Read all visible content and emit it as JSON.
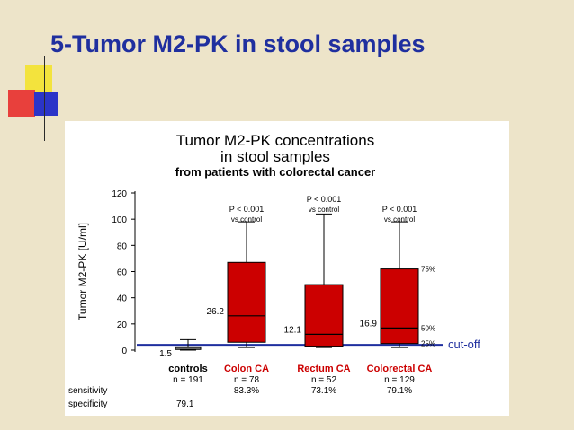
{
  "slide": {
    "title": "5-Tumor M2-PK in stool samples"
  },
  "colors": {
    "title": "#1f2f9f",
    "box": "#cc0000",
    "cutoff": "#1f2f9f",
    "background": "#ede4c9"
  },
  "chart_data": {
    "type": "boxplot",
    "title": [
      "Tumor M2-PK concentrations",
      "in stool samples"
    ],
    "subtitle": "from patients with colorectal cancer",
    "ylabel": "Tumor M2-PK   [U/ml]",
    "ylim": [
      0,
      120
    ],
    "yticks": [
      0,
      20,
      40,
      60,
      80,
      100,
      120
    ],
    "cutoff": {
      "value": 4,
      "label": "cut-off"
    },
    "groups": [
      {
        "name": "controls",
        "n": "n = 191",
        "color": "#000000",
        "whisker_low": 0,
        "q1": 0.5,
        "median": 1.5,
        "q3": 2.5,
        "whisker_high": 8,
        "median_label": "1.5",
        "pvalue": null,
        "sensitivity": "",
        "specificity": "79.1"
      },
      {
        "name": "Colon CA",
        "n": "n = 78",
        "color": "#cc0000",
        "whisker_low": 2,
        "q1": 6,
        "median": 26.2,
        "q3": 67,
        "whisker_high": 98,
        "median_label": "26.2",
        "pvalue": [
          "P < 0.001",
          "vs control"
        ],
        "sensitivity": "83.3%",
        "specificity": ""
      },
      {
        "name": "Rectum CA",
        "n": "n = 52",
        "color": "#cc0000",
        "whisker_low": 2,
        "q1": 3,
        "median": 12.1,
        "q3": 50,
        "whisker_high": 104,
        "median_label": "12.1",
        "pvalue": [
          "P < 0.001",
          "vs control"
        ],
        "sensitivity": "73.1%",
        "specificity": ""
      },
      {
        "name": "Colorectal CA",
        "n": "n = 129",
        "color": "#cc0000",
        "whisker_low": 2,
        "q1": 5,
        "median": 16.9,
        "q3": 62,
        "whisker_high": 98,
        "median_label": "16.9",
        "pvalue": [
          "P < 0.001",
          "vs control"
        ],
        "sensitivity": "79.1%",
        "specificity": ""
      }
    ],
    "percentile_labels": [
      "75%",
      "50%",
      "25%"
    ],
    "row_labels": {
      "sensitivity": "sensitivity",
      "specificity": "specificity"
    }
  }
}
